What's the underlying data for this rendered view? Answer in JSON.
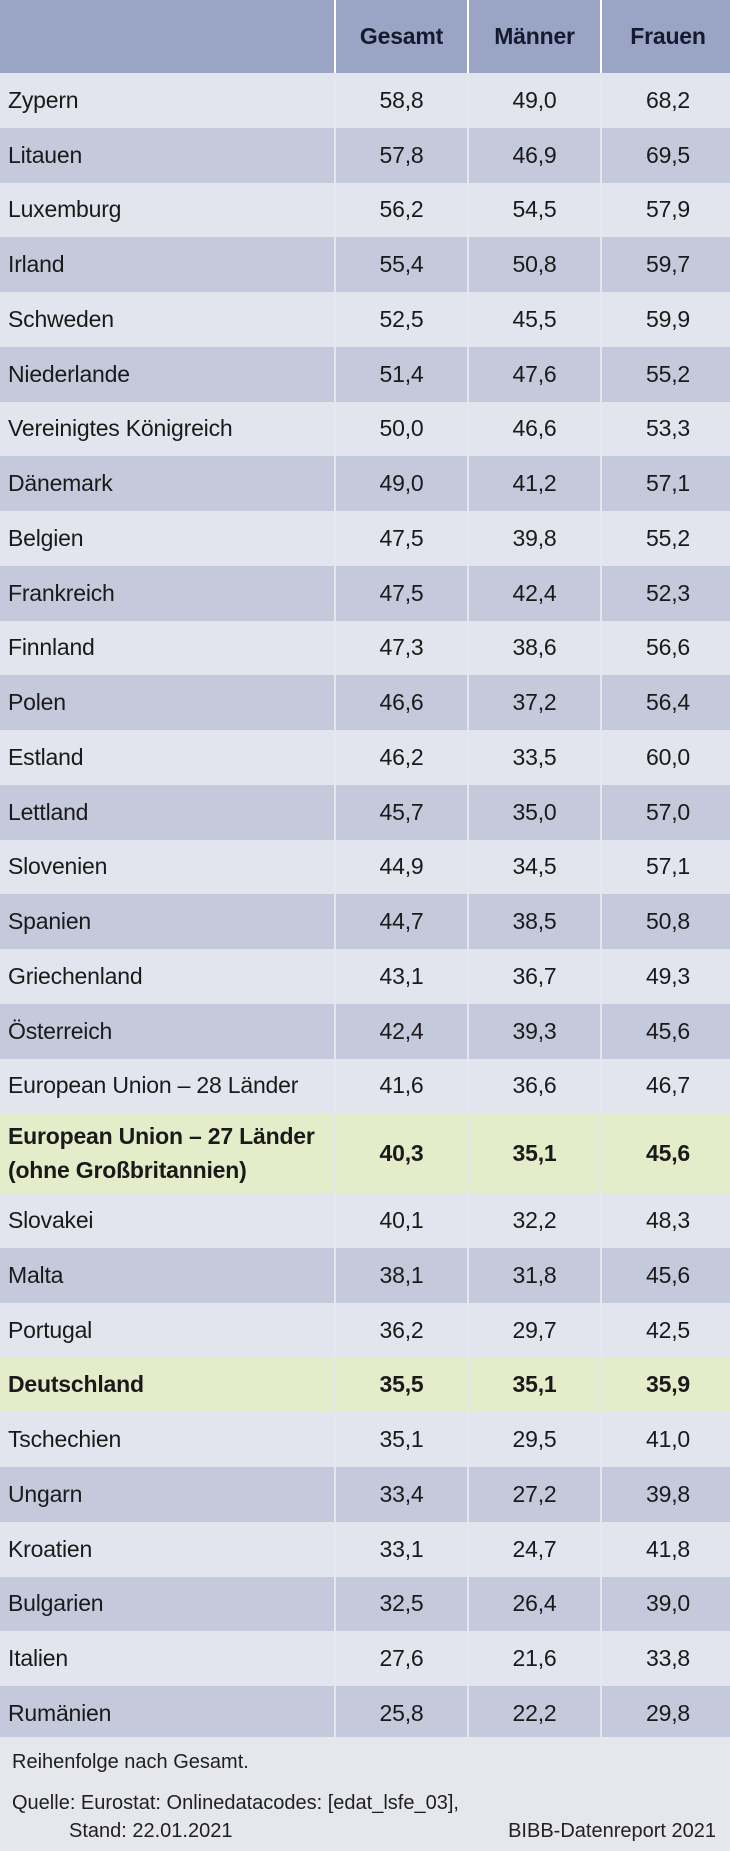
{
  "header": {
    "col0": "",
    "col1": "Gesamt",
    "col2": "Männer",
    "col3": "Frauen"
  },
  "rows": [
    {
      "name": "Zypern",
      "gesamt": "58,8",
      "maenner": "49,0",
      "frauen": "68,2"
    },
    {
      "name": "Litauen",
      "gesamt": "57,8",
      "maenner": "46,9",
      "frauen": "69,5"
    },
    {
      "name": "Luxemburg",
      "gesamt": "56,2",
      "maenner": "54,5",
      "frauen": "57,9"
    },
    {
      "name": "Irland",
      "gesamt": "55,4",
      "maenner": "50,8",
      "frauen": "59,7"
    },
    {
      "name": "Schweden",
      "gesamt": "52,5",
      "maenner": "45,5",
      "frauen": "59,9"
    },
    {
      "name": "Niederlande",
      "gesamt": "51,4",
      "maenner": "47,6",
      "frauen": "55,2"
    },
    {
      "name": "Vereinigtes Königreich",
      "gesamt": "50,0",
      "maenner": "46,6",
      "frauen": "53,3"
    },
    {
      "name": "Dänemark",
      "gesamt": "49,0",
      "maenner": "41,2",
      "frauen": "57,1"
    },
    {
      "name": "Belgien",
      "gesamt": "47,5",
      "maenner": "39,8",
      "frauen": "55,2"
    },
    {
      "name": "Frankreich",
      "gesamt": "47,5",
      "maenner": "42,4",
      "frauen": "52,3"
    },
    {
      "name": "Finnland",
      "gesamt": "47,3",
      "maenner": "38,6",
      "frauen": "56,6"
    },
    {
      "name": "Polen",
      "gesamt": "46,6",
      "maenner": "37,2",
      "frauen": "56,4"
    },
    {
      "name": "Estland",
      "gesamt": "46,2",
      "maenner": "33,5",
      "frauen": "60,0"
    },
    {
      "name": "Lettland",
      "gesamt": "45,7",
      "maenner": "35,0",
      "frauen": "57,0"
    },
    {
      "name": "Slovenien",
      "gesamt": "44,9",
      "maenner": "34,5",
      "frauen": "57,1"
    },
    {
      "name": "Spanien",
      "gesamt": "44,7",
      "maenner": "38,5",
      "frauen": "50,8"
    },
    {
      "name": "Griechenland",
      "gesamt": "43,1",
      "maenner": "36,7",
      "frauen": "49,3"
    },
    {
      "name": "Österreich",
      "gesamt": "42,4",
      "maenner": "39,3",
      "frauen": "45,6"
    },
    {
      "name": "European Union – 28 Länder",
      "gesamt": "41,6",
      "maenner": "36,6",
      "frauen": "46,7"
    },
    {
      "name": "European Union – 27 Länder (ohne Großbritannien)",
      "gesamt": "40,3",
      "maenner": "35,1",
      "frauen": "45,6"
    },
    {
      "name": "Slovakei",
      "gesamt": "40,1",
      "maenner": "32,2",
      "frauen": "48,3"
    },
    {
      "name": "Malta",
      "gesamt": "38,1",
      "maenner": "31,8",
      "frauen": "45,6"
    },
    {
      "name": "Portugal",
      "gesamt": "36,2",
      "maenner": "29,7",
      "frauen": "42,5"
    },
    {
      "name": "Deutschland",
      "gesamt": "35,5",
      "maenner": "35,1",
      "frauen": "35,9"
    },
    {
      "name": "Tschechien",
      "gesamt": "35,1",
      "maenner": "29,5",
      "frauen": "41,0"
    },
    {
      "name": "Ungarn",
      "gesamt": "33,4",
      "maenner": "27,2",
      "frauen": "39,8"
    },
    {
      "name": "Kroatien",
      "gesamt": "33,1",
      "maenner": "24,7",
      "frauen": "41,8"
    },
    {
      "name": "Bulgarien",
      "gesamt": "32,5",
      "maenner": "26,4",
      "frauen": "39,0"
    },
    {
      "name": "Italien",
      "gesamt": "27,6",
      "maenner": "21,6",
      "frauen": "33,8"
    },
    {
      "name": "Rumänien",
      "gesamt": "25,8",
      "maenner": "22,2",
      "frauen": "29,8"
    }
  ],
  "footer": {
    "note": "Reihenfolge nach Gesamt.",
    "source_line1": "Quelle: Eurostat: Onlinedatacodes: [edat_lsfe_03],",
    "source_line2": "Stand: 22.01.2021",
    "brand": "BIBB-Datenreport 2021"
  },
  "colors": {
    "header": "#9aa4c4",
    "row_light": "#e3e5ee",
    "row_dark": "#c5c9dc",
    "highlight": "#e4ecca"
  }
}
